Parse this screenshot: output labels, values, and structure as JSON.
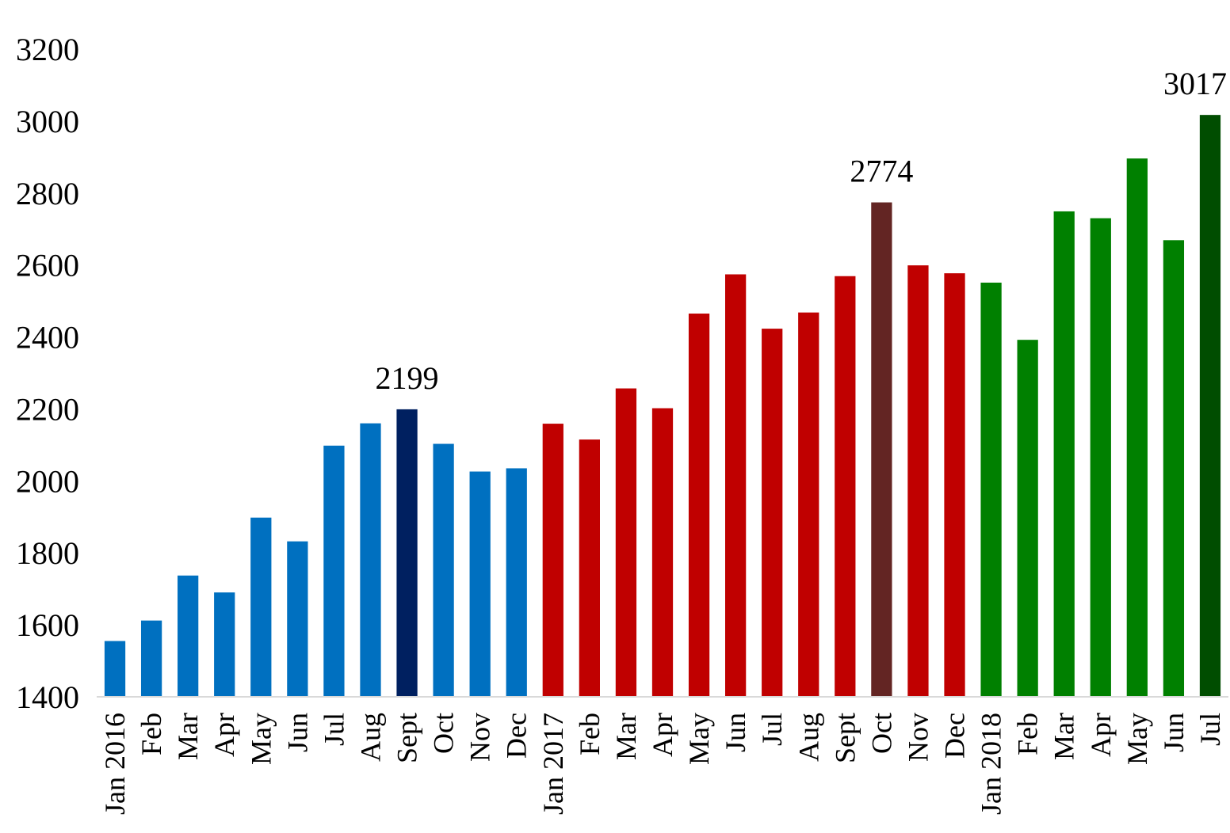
{
  "chart_data": {
    "type": "bar",
    "title": "",
    "xlabel": "",
    "ylabel": "",
    "ylim": [
      1400,
      3200
    ],
    "yticks": [
      1400,
      1600,
      1800,
      2000,
      2200,
      2400,
      2600,
      2800,
      3000,
      3200
    ],
    "grid": false,
    "legend": "none",
    "categories": [
      "Jan 2016",
      "Feb",
      "Mar",
      "Apr",
      "May",
      "Jun",
      "Jul",
      "Aug",
      "Sept",
      "Oct",
      "Nov",
      "Dec",
      "Jan 2017",
      "Feb",
      "Mar",
      "Apr",
      "May",
      "Jun",
      "Jul",
      "Aug",
      "Sept",
      "Oct",
      "Nov",
      "Dec",
      "Jan 2018",
      "Feb",
      "Mar",
      "Apr",
      "May",
      "Jun",
      "Jul"
    ],
    "values": [
      1555,
      1612,
      1737,
      1690,
      1898,
      1832,
      2098,
      2160,
      2199,
      2103,
      2026,
      2035,
      2159,
      2115,
      2257,
      2202,
      2465,
      2574,
      2423,
      2468,
      2569,
      2774,
      2599,
      2577,
      2551,
      2392,
      2749,
      2730,
      2896,
      2669,
      3017
    ],
    "colors": [
      "#0070c0",
      "#0070c0",
      "#0070c0",
      "#0070c0",
      "#0070c0",
      "#0070c0",
      "#0070c0",
      "#0070c0",
      "#002060",
      "#0070c0",
      "#0070c0",
      "#0070c0",
      "#c00000",
      "#c00000",
      "#c00000",
      "#c00000",
      "#c00000",
      "#c00000",
      "#c00000",
      "#c00000",
      "#c00000",
      "#632523",
      "#c00000",
      "#c00000",
      "#008000",
      "#008000",
      "#008000",
      "#008000",
      "#008000",
      "#008000",
      "#004d00"
    ],
    "data_labels": [
      {
        "index": 8,
        "text": "2199"
      },
      {
        "index": 21,
        "text": "2774"
      },
      {
        "index": 30,
        "text": "3017"
      }
    ]
  }
}
